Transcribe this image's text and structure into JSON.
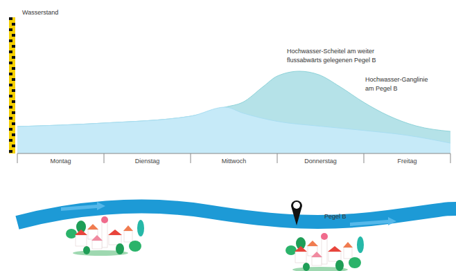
{
  "chart_data": {
    "type": "area",
    "y_label": "Wasserstand",
    "xlim": [
      0,
      5
    ],
    "xticks": [
      {
        "value": 0.5,
        "label": "Montag"
      },
      {
        "value": 1.5,
        "label": "Dienstag"
      },
      {
        "value": 2.5,
        "label": "Mittwoch"
      },
      {
        "value": 3.5,
        "label": "Donnerstag"
      },
      {
        "value": 4.5,
        "label": "Freitag"
      }
    ],
    "ylim": [
      0,
      10
    ],
    "tick_labels": "x",
    "annotations": [
      "Hochwasser-Scheitel am weiter flussabwärts gelegenen Pegel B"
    ],
    "series": [
      {
        "name": "Hochwasser-Ganglinie am Pegel B",
        "color": "#b5e2e8",
        "x": [
          0,
          1,
          2,
          2.4,
          2.6,
          2.84,
          3,
          3.256,
          3.48,
          3.72,
          4,
          4.28,
          4.6,
          5
        ],
        "values": [
          1.93,
          2.18,
          2.67,
          3.32,
          3.66,
          4.8,
          5.54,
          5.89,
          5.64,
          4.8,
          3.66,
          2.72,
          1.98,
          1.58
        ]
      },
      {
        "color": "#c6eaf8",
        "x": [
          0,
          1,
          2,
          2.4,
          2.6,
          3,
          3.5,
          4,
          4.5,
          5
        ],
        "values": [
          1.93,
          2.18,
          2.67,
          3.32,
          2.9,
          2.3,
          1.95,
          1.65,
          1.3,
          0.74
        ]
      }
    ]
  },
  "diagram": {
    "gauge_label": "Pegel B"
  }
}
